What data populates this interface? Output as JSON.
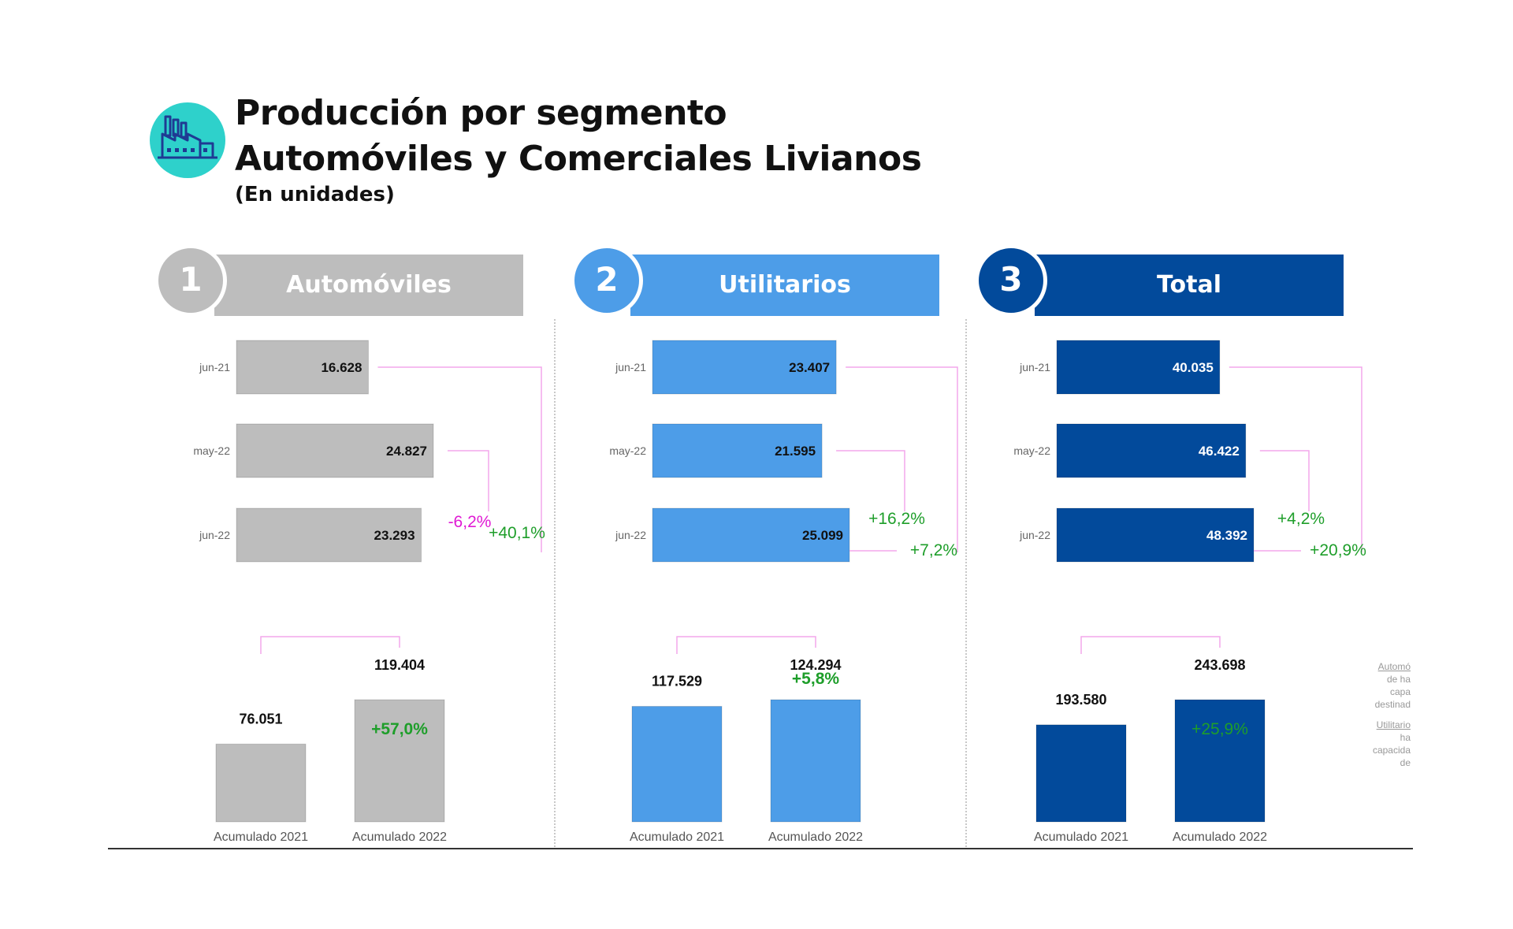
{
  "header": {
    "title_line1": "Producción por segmento",
    "title_line2": "Automóviles y Comerciales Livianos",
    "subtitle": "(En unidades)",
    "icon": "factory-icon"
  },
  "colors": {
    "icon_bg": "#2ed1cb",
    "automoviles": "#bdbdbd",
    "utilitarios": "#4d9de8",
    "total": "#024a9b",
    "positive": "#1e9e2a",
    "negative": "#e01ad4",
    "connector": "#f4a7ec"
  },
  "side_note": [
    "Automó",
    "de ha",
    "capa",
    "destinad",
    "Utilitario",
    "ha",
    "capacida",
    "de"
  ],
  "chart_data": [
    {
      "type": "bar",
      "panel_number": "1",
      "title": "Automóviles",
      "orientation": "horizontal",
      "categories": [
        "jun-21",
        "may-22",
        "jun-22"
      ],
      "values": [
        16628,
        24827,
        23293
      ],
      "value_labels": [
        "16.628",
        "24.827",
        "23.293"
      ],
      "variations": [
        {
          "label": "-6,2%",
          "from": "may-22",
          "to": "jun-22",
          "sign": "negative"
        },
        {
          "label": "+40,1%",
          "from": "jun-21",
          "to": "jun-22",
          "sign": "positive"
        }
      ],
      "accumulated": {
        "type": "bar",
        "categories": [
          "Acumulado 2021",
          "Acumulado 2022"
        ],
        "values": [
          76051,
          119404
        ],
        "value_labels": [
          "76.051",
          "119.404"
        ],
        "variation": "+57,0%"
      }
    },
    {
      "type": "bar",
      "panel_number": "2",
      "title": "Utilitarios",
      "orientation": "horizontal",
      "categories": [
        "jun-21",
        "may-22",
        "jun-22"
      ],
      "values": [
        23407,
        21595,
        25099
      ],
      "value_labels": [
        "23.407",
        "21.595",
        "25.099"
      ],
      "variations": [
        {
          "label": "+16,2%",
          "from": "may-22",
          "to": "jun-22",
          "sign": "positive"
        },
        {
          "label": "+7,2%",
          "from": "jun-21",
          "to": "jun-22",
          "sign": "positive"
        }
      ],
      "accumulated": {
        "type": "bar",
        "categories": [
          "Acumulado 2021",
          "Acumulado 2022"
        ],
        "values": [
          117529,
          124294
        ],
        "value_labels": [
          "117.529",
          "124.294"
        ],
        "variation": "+5,8%"
      }
    },
    {
      "type": "bar",
      "panel_number": "3",
      "title": "Total",
      "orientation": "horizontal",
      "categories": [
        "jun-21",
        "may-22",
        "jun-22"
      ],
      "values": [
        40035,
        46422,
        48392
      ],
      "value_labels": [
        "40.035",
        "46.422",
        "48.392"
      ],
      "variations": [
        {
          "label": "+4,2%",
          "from": "may-22",
          "to": "jun-22",
          "sign": "positive"
        },
        {
          "label": "+20,9%",
          "from": "jun-21",
          "to": "jun-22",
          "sign": "positive"
        }
      ],
      "accumulated": {
        "type": "bar",
        "categories": [
          "Acumulado 2021",
          "Acumulado 2022"
        ],
        "values": [
          193580,
          243698
        ],
        "value_labels": [
          "193.580",
          "243.698"
        ],
        "variation": "+25,9%"
      }
    }
  ]
}
